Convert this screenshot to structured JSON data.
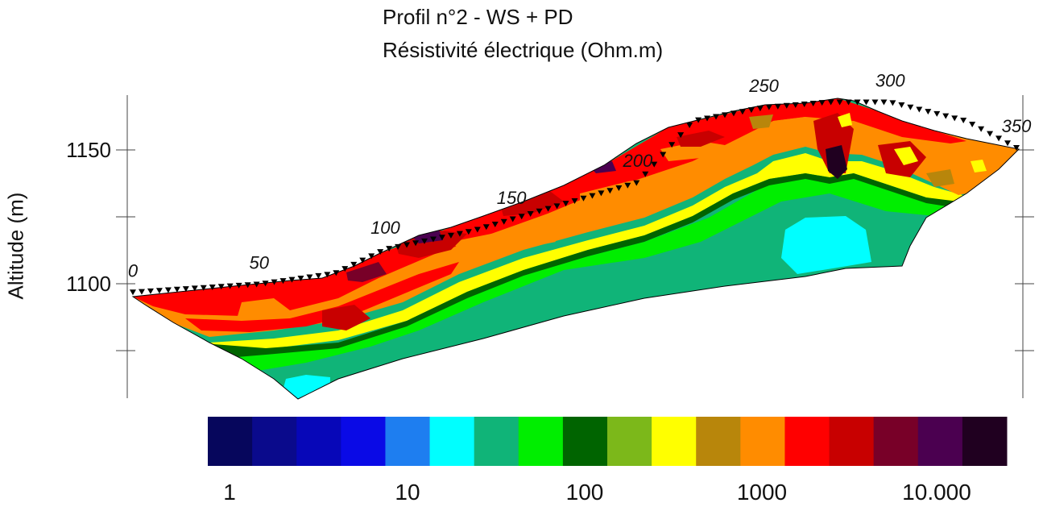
{
  "chart_data": {
    "type": "heatmap",
    "title": "Profil n°2 - WS + PD",
    "subtitle": "Résistivité électrique (Ohm.m)",
    "ylabel": "Altitude (m)",
    "y_ticks": [
      {
        "label": "1150",
        "value": 1150
      },
      {
        "label": "1100",
        "value": 1100
      }
    ],
    "ylim": [
      1062,
      1172
    ],
    "xlim": [
      0,
      350
    ],
    "distance_labels": [
      {
        "label": "0",
        "value": 0
      },
      {
        "label": "50",
        "value": 50
      },
      {
        "label": "100",
        "value": 100
      },
      {
        "label": "150",
        "value": 150
      },
      {
        "label": "200",
        "value": 200
      },
      {
        "label": "250",
        "value": 250
      },
      {
        "label": "300",
        "value": 300
      },
      {
        "label": "350",
        "value": 350
      }
    ],
    "topography": [
      [
        0,
        1096
      ],
      [
        50,
        1099
      ],
      [
        80,
        1103
      ],
      [
        100,
        1112
      ],
      [
        135,
        1119
      ],
      [
        160,
        1126
      ],
      [
        200,
        1137
      ],
      [
        222,
        1160
      ],
      [
        250,
        1165
      ],
      [
        275,
        1167
      ],
      [
        300,
        1167
      ],
      [
        330,
        1160
      ],
      [
        350,
        1150
      ]
    ],
    "colorbar": {
      "colors": [
        "#06065c",
        "#0a0a8c",
        "#0707b8",
        "#0a0ae6",
        "#1e7ef0",
        "#00ffff",
        "#10b478",
        "#00ee00",
        "#006400",
        "#7cb81a",
        "#ffff00",
        "#b8860b",
        "#ff8c00",
        "#ff0000",
        "#c80000",
        "#780028",
        "#4b0050",
        "#200020"
      ],
      "labels": [
        {
          "label": "1",
          "value": 1
        },
        {
          "label": "10",
          "value": 10
        },
        {
          "label": "100",
          "value": 100
        },
        {
          "label": "1000",
          "value": 1000
        },
        {
          "label": "10.000",
          "value": 10000
        }
      ]
    }
  }
}
